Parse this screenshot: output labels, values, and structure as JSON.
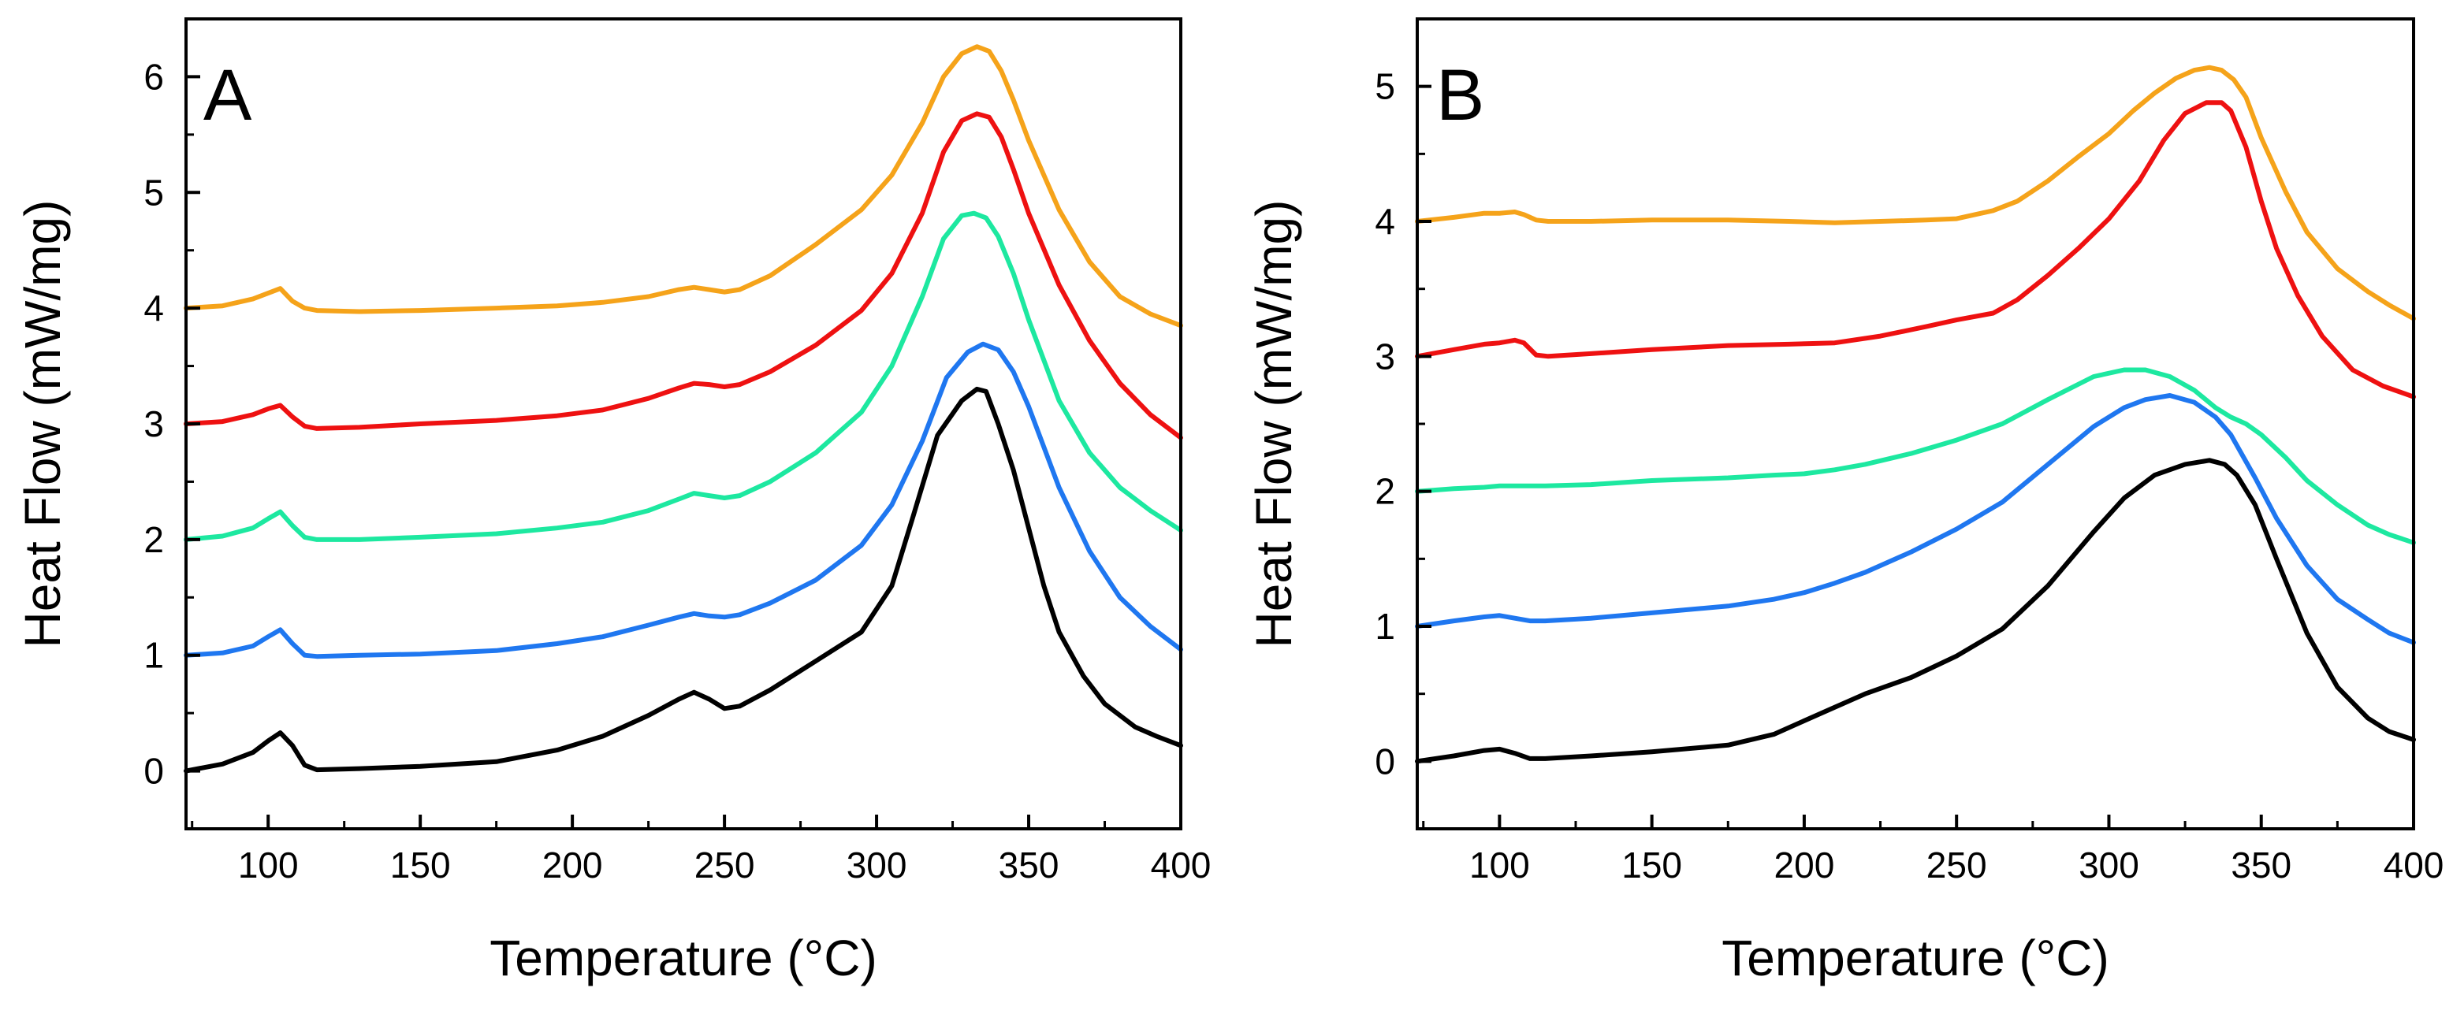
{
  "chart_data": [
    {
      "type": "line",
      "panel_label": "A",
      "xlabel": "Temperature (°C)",
      "ylabel": "Heat Flow (mW/mg)",
      "xlim": [
        73,
        400
      ],
      "ylim": [
        -0.5,
        6.5
      ],
      "xticks": [
        100,
        150,
        200,
        250,
        300,
        350,
        400
      ],
      "xtick_labels": [
        "100",
        "150",
        "200",
        "250",
        "300",
        "350",
        "400"
      ],
      "yticks": [
        0,
        1,
        2,
        3,
        4,
        5,
        6
      ],
      "ytick_labels": [
        "0",
        "1",
        "2",
        "3",
        "4",
        "5",
        "6"
      ],
      "grid": false,
      "legend": "none",
      "series": [
        {
          "name": "black",
          "color": "#000000",
          "x": [
            73,
            85,
            95,
            100,
            104,
            108,
            112,
            116,
            130,
            150,
            175,
            195,
            210,
            225,
            235,
            240,
            245,
            250,
            255,
            265,
            280,
            295,
            305,
            312,
            320,
            328,
            333,
            336,
            340,
            345,
            350,
            355,
            360,
            368,
            375,
            385,
            392,
            400
          ],
          "y": [
            0,
            0.06,
            0.16,
            0.26,
            0.33,
            0.22,
            0.05,
            0.01,
            0.02,
            0.04,
            0.08,
            0.18,
            0.3,
            0.48,
            0.62,
            0.68,
            0.62,
            0.54,
            0.56,
            0.7,
            0.95,
            1.2,
            1.6,
            2.2,
            2.9,
            3.2,
            3.3,
            3.28,
            3.0,
            2.6,
            2.1,
            1.6,
            1.2,
            0.82,
            0.58,
            0.38,
            0.3,
            0.22
          ]
        },
        {
          "name": "blue",
          "color": "#1f77f0",
          "x": [
            73,
            85,
            95,
            100,
            104,
            108,
            112,
            116,
            130,
            150,
            175,
            195,
            210,
            225,
            235,
            240,
            245,
            250,
            255,
            265,
            280,
            295,
            305,
            315,
            323,
            330,
            335,
            340,
            345,
            350,
            355,
            360,
            370,
            380,
            390,
            400
          ],
          "y": [
            1,
            1.02,
            1.08,
            1.16,
            1.22,
            1.1,
            1.0,
            0.99,
            1.0,
            1.01,
            1.04,
            1.1,
            1.16,
            1.26,
            1.33,
            1.36,
            1.34,
            1.33,
            1.35,
            1.45,
            1.65,
            1.95,
            2.3,
            2.85,
            3.4,
            3.62,
            3.69,
            3.64,
            3.45,
            3.15,
            2.8,
            2.45,
            1.9,
            1.5,
            1.25,
            1.05
          ]
        },
        {
          "name": "green",
          "color": "#1de8a0",
          "x": [
            73,
            85,
            95,
            100,
            104,
            108,
            112,
            116,
            130,
            150,
            175,
            195,
            210,
            225,
            235,
            240,
            245,
            250,
            255,
            265,
            280,
            295,
            305,
            315,
            322,
            328,
            332,
            336,
            340,
            345,
            350,
            360,
            370,
            380,
            390,
            400
          ],
          "y": [
            2,
            2.03,
            2.1,
            2.18,
            2.24,
            2.12,
            2.02,
            2.0,
            2.0,
            2.02,
            2.05,
            2.1,
            2.15,
            2.25,
            2.35,
            2.4,
            2.38,
            2.36,
            2.38,
            2.5,
            2.75,
            3.1,
            3.5,
            4.1,
            4.6,
            4.8,
            4.82,
            4.78,
            4.62,
            4.3,
            3.9,
            3.2,
            2.75,
            2.45,
            2.25,
            2.08
          ]
        },
        {
          "name": "red",
          "color": "#ee1111",
          "x": [
            73,
            85,
            95,
            100,
            104,
            108,
            112,
            116,
            130,
            150,
            175,
            195,
            210,
            225,
            235,
            240,
            245,
            250,
            255,
            265,
            280,
            295,
            305,
            315,
            322,
            328,
            333,
            337,
            341,
            345,
            350,
            360,
            370,
            380,
            390,
            400
          ],
          "y": [
            3,
            3.02,
            3.08,
            3.13,
            3.16,
            3.06,
            2.98,
            2.96,
            2.97,
            3.0,
            3.03,
            3.07,
            3.12,
            3.22,
            3.31,
            3.35,
            3.34,
            3.32,
            3.34,
            3.45,
            3.68,
            3.98,
            4.3,
            4.82,
            5.35,
            5.62,
            5.68,
            5.65,
            5.48,
            5.2,
            4.82,
            4.2,
            3.72,
            3.35,
            3.08,
            2.88
          ]
        },
        {
          "name": "orange",
          "color": "#f5a31a",
          "x": [
            73,
            85,
            95,
            100,
            104,
            108,
            112,
            116,
            130,
            150,
            175,
            195,
            210,
            225,
            235,
            240,
            245,
            250,
            255,
            265,
            280,
            295,
            305,
            315,
            322,
            328,
            333,
            337,
            341,
            345,
            350,
            360,
            370,
            380,
            390,
            400
          ],
          "y": [
            4,
            4.02,
            4.08,
            4.13,
            4.17,
            4.06,
            4.0,
            3.98,
            3.97,
            3.98,
            4.0,
            4.02,
            4.05,
            4.1,
            4.16,
            4.18,
            4.16,
            4.14,
            4.16,
            4.28,
            4.55,
            4.85,
            5.15,
            5.6,
            6.0,
            6.2,
            6.26,
            6.22,
            6.05,
            5.8,
            5.45,
            4.85,
            4.4,
            4.1,
            3.95,
            3.85
          ]
        }
      ]
    },
    {
      "type": "line",
      "panel_label": "B",
      "xlabel": "Temperature (°C)",
      "ylabel": "Heat Flow (mW/mg)",
      "xlim": [
        73,
        400
      ],
      "ylim": [
        -0.5,
        5.5
      ],
      "xticks": [
        100,
        150,
        200,
        250,
        300,
        350,
        400
      ],
      "xtick_labels": [
        "100",
        "150",
        "200",
        "250",
        "300",
        "350",
        "400"
      ],
      "yticks": [
        0,
        1,
        2,
        3,
        4,
        5
      ],
      "ytick_labels": [
        "0",
        "1",
        "2",
        "3",
        "4",
        "5"
      ],
      "grid": false,
      "legend": "none",
      "series": [
        {
          "name": "black",
          "color": "#000000",
          "x": [
            73,
            85,
            95,
            100,
            105,
            110,
            115,
            130,
            150,
            175,
            190,
            200,
            210,
            220,
            235,
            250,
            265,
            280,
            295,
            305,
            315,
            325,
            333,
            338,
            342,
            348,
            355,
            365,
            375,
            385,
            392,
            400
          ],
          "y": [
            0,
            0.04,
            0.08,
            0.09,
            0.06,
            0.02,
            0.02,
            0.04,
            0.07,
            0.12,
            0.2,
            0.3,
            0.4,
            0.5,
            0.62,
            0.78,
            0.98,
            1.3,
            1.7,
            1.95,
            2.12,
            2.2,
            2.23,
            2.2,
            2.12,
            1.9,
            1.5,
            0.95,
            0.55,
            0.32,
            0.22,
            0.16
          ]
        },
        {
          "name": "blue",
          "color": "#1f77f0",
          "x": [
            73,
            85,
            95,
            100,
            105,
            110,
            115,
            130,
            150,
            175,
            190,
            200,
            210,
            220,
            235,
            250,
            265,
            280,
            295,
            305,
            312,
            320,
            328,
            335,
            340,
            348,
            355,
            365,
            375,
            385,
            392,
            400
          ],
          "y": [
            1,
            1.04,
            1.07,
            1.08,
            1.06,
            1.04,
            1.04,
            1.06,
            1.1,
            1.15,
            1.2,
            1.25,
            1.32,
            1.4,
            1.55,
            1.72,
            1.92,
            2.2,
            2.48,
            2.62,
            2.68,
            2.71,
            2.66,
            2.55,
            2.42,
            2.1,
            1.8,
            1.45,
            1.2,
            1.05,
            0.95,
            0.88
          ]
        },
        {
          "name": "green",
          "color": "#1de8a0",
          "x": [
            73,
            85,
            95,
            100,
            105,
            110,
            115,
            130,
            150,
            175,
            190,
            200,
            210,
            220,
            235,
            250,
            265,
            280,
            295,
            305,
            312,
            320,
            328,
            335,
            340,
            345,
            350,
            358,
            365,
            375,
            385,
            392,
            400
          ],
          "y": [
            2,
            2.02,
            2.03,
            2.04,
            2.04,
            2.04,
            2.04,
            2.05,
            2.08,
            2.1,
            2.12,
            2.13,
            2.16,
            2.2,
            2.28,
            2.38,
            2.5,
            2.68,
            2.85,
            2.9,
            2.9,
            2.85,
            2.75,
            2.62,
            2.55,
            2.5,
            2.42,
            2.25,
            2.08,
            1.9,
            1.75,
            1.68,
            1.62
          ]
        },
        {
          "name": "red",
          "color": "#ee1111",
          "x": [
            73,
            85,
            95,
            100,
            105,
            108,
            112,
            116,
            130,
            150,
            175,
            195,
            210,
            225,
            240,
            250,
            262,
            270,
            280,
            290,
            300,
            310,
            318,
            325,
            332,
            337,
            340,
            345,
            350,
            355,
            362,
            370,
            380,
            390,
            400
          ],
          "y": [
            3,
            3.05,
            3.09,
            3.1,
            3.12,
            3.1,
            3.01,
            3.0,
            3.02,
            3.05,
            3.08,
            3.09,
            3.1,
            3.15,
            3.22,
            3.27,
            3.32,
            3.42,
            3.6,
            3.8,
            4.02,
            4.3,
            4.6,
            4.8,
            4.88,
            4.88,
            4.82,
            4.55,
            4.15,
            3.8,
            3.45,
            3.15,
            2.9,
            2.78,
            2.7
          ]
        },
        {
          "name": "orange",
          "color": "#f5a31a",
          "x": [
            73,
            85,
            95,
            100,
            105,
            108,
            112,
            116,
            130,
            150,
            175,
            195,
            210,
            225,
            240,
            250,
            262,
            270,
            280,
            290,
            300,
            308,
            315,
            322,
            328,
            333,
            337,
            341,
            345,
            350,
            358,
            365,
            375,
            385,
            392,
            400
          ],
          "y": [
            4,
            4.03,
            4.06,
            4.06,
            4.07,
            4.05,
            4.01,
            4.0,
            4.0,
            4.01,
            4.01,
            4.0,
            3.99,
            4.0,
            4.01,
            4.02,
            4.08,
            4.15,
            4.3,
            4.48,
            4.65,
            4.82,
            4.95,
            5.06,
            5.12,
            5.14,
            5.12,
            5.05,
            4.92,
            4.62,
            4.22,
            3.92,
            3.65,
            3.48,
            3.38,
            3.28
          ]
        }
      ]
    }
  ]
}
